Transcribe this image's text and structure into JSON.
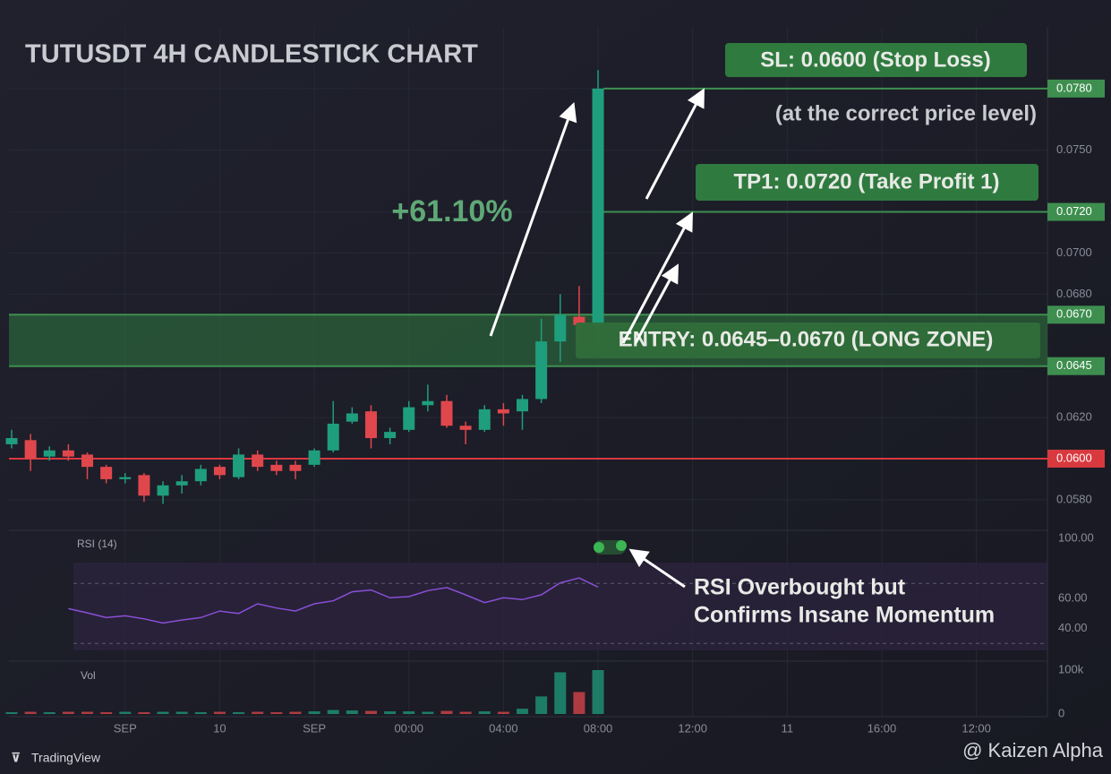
{
  "chart_data": {
    "type": "candlestick",
    "title": "TUTUSDT 4H CANDLESTICK CHART",
    "x_labels": [
      "SEP",
      "10",
      "SEP",
      "00:00",
      "04:00",
      "08:00",
      "12:00",
      "11",
      "16:00",
      "12:00"
    ],
    "ohlc": {
      "open": [
        0.0607,
        0.0609,
        0.0601,
        0.0604,
        0.0602,
        0.0596,
        0.059,
        0.0592,
        0.0582,
        0.0587,
        0.0589,
        0.0596,
        0.0591,
        0.0602,
        0.0597,
        0.0597,
        0.0597,
        0.0604,
        0.0618,
        0.0623,
        0.061,
        0.0614,
        0.0626,
        0.0628,
        0.0616,
        0.0614,
        0.0624,
        0.0623,
        0.0629,
        0.0657,
        0.0669,
        0.0665
      ],
      "high": [
        0.0614,
        0.0612,
        0.0606,
        0.0607,
        0.0603,
        0.0597,
        0.0593,
        0.0593,
        0.0589,
        0.0592,
        0.0597,
        0.0597,
        0.0605,
        0.0604,
        0.0599,
        0.0599,
        0.0605,
        0.0628,
        0.0625,
        0.0626,
        0.0615,
        0.0628,
        0.0636,
        0.0631,
        0.0618,
        0.0626,
        0.0627,
        0.0631,
        0.0668,
        0.068,
        0.0684,
        0.0789
      ],
      "low": [
        0.0605,
        0.0594,
        0.0599,
        0.0599,
        0.059,
        0.0588,
        0.0588,
        0.0579,
        0.0578,
        0.0583,
        0.0587,
        0.059,
        0.059,
        0.0594,
        0.0592,
        0.059,
        0.0596,
        0.0603,
        0.0617,
        0.0605,
        0.0607,
        0.0613,
        0.0623,
        0.0615,
        0.0607,
        0.0613,
        0.0616,
        0.0614,
        0.0627,
        0.0647,
        0.0655,
        0.0655
      ],
      "close": [
        0.061,
        0.06,
        0.0604,
        0.0601,
        0.0596,
        0.059,
        0.0591,
        0.0582,
        0.0587,
        0.0589,
        0.0595,
        0.0592,
        0.0602,
        0.0596,
        0.0594,
        0.0594,
        0.0604,
        0.0617,
        0.0622,
        0.061,
        0.0613,
        0.0625,
        0.0628,
        0.0616,
        0.0614,
        0.0624,
        0.0622,
        0.0629,
        0.0657,
        0.067,
        0.0665,
        0.078
      ]
    },
    "up_color": "#1f9e7e",
    "down_color": "#e0474c",
    "ylim": [
      0.0566,
      0.081
    ],
    "yticks": [
      {
        "value": 0.078,
        "label": "0.0780"
      },
      {
        "value": 0.075,
        "label": "0.0750"
      },
      {
        "value": 0.072,
        "label": "0.0720"
      },
      {
        "value": 0.07,
        "label": "0.0700"
      },
      {
        "value": 0.068,
        "label": "0.0680"
      },
      {
        "value": 0.067,
        "label": "0.0670"
      },
      {
        "value": 0.062,
        "label": "0.0620"
      },
      {
        "value": 0.058,
        "label": "0.0580"
      }
    ],
    "grid": true,
    "levels": [
      {
        "value": 0.078,
        "label": "0.0780",
        "kind": "target",
        "color": "#3e8f4f"
      },
      {
        "value": 0.072,
        "label": "0.0720",
        "kind": "target",
        "color": "#3e8f4f"
      },
      {
        "value": 0.067,
        "label": "0.0670",
        "kind": "entry",
        "color": "#3e8f4f"
      },
      {
        "value": 0.0645,
        "label": "0.0645",
        "kind": "entry",
        "color": "#3e8f4f"
      },
      {
        "value": 0.06,
        "label": "0.0600",
        "kind": "stop",
        "color": "#d8393f"
      }
    ],
    "annotations": {
      "change": "+61.10%",
      "sl": "SL: 0.0600 (Stop Loss)",
      "sl_note": "(at the correct price level)",
      "tp1": "TP1: 0.0720 (Take Profit 1)",
      "entry": "ENTRY: 0.0645–0.0670 (LONG ZONE)",
      "rsi_note": [
        "RSI Overbought but",
        "Confirms Insane Momentum"
      ]
    },
    "rsi": {
      "label": "RSI (14)",
      "color": "#8a4fd6",
      "values": [
        null,
        null,
        null,
        53.2,
        50.4,
        47.2,
        48.4,
        46.4,
        43.6,
        45.6,
        47.2,
        51.6,
        50,
        56.4,
        53.6,
        51.6,
        56.4,
        58.4,
        64.4,
        65.6,
        60.4,
        61.2,
        65.2,
        67.2,
        62.4,
        57.2,
        60.4,
        59.2,
        62.4,
        70.4,
        73.6,
        67.6
      ],
      "ylim": [
        20,
        100
      ],
      "yticks": [
        {
          "value": 100,
          "label": "100.00"
        },
        {
          "value": 60,
          "label": "60.00"
        },
        {
          "value": 40,
          "label": "40.00"
        }
      ],
      "bands": [
        30,
        70
      ]
    },
    "volume": {
      "label": "Vol",
      "values": [
        4000,
        5000,
        4000,
        5000,
        5000,
        4000,
        5000,
        4000,
        5000,
        5000,
        4000,
        5000,
        4000,
        5000,
        4000,
        5000,
        6000,
        9000,
        8000,
        7000,
        6000,
        6000,
        5000,
        7000,
        5000,
        6000,
        5000,
        12000,
        40000,
        95000,
        50000,
        100000
      ],
      "ylim": [
        0,
        100000
      ],
      "yticks": [
        {
          "value": 100000,
          "label": "100k"
        },
        0
      ]
    }
  },
  "footer": {
    "brand": "TradingView",
    "watermark": "@ Kaizen Alpha"
  }
}
